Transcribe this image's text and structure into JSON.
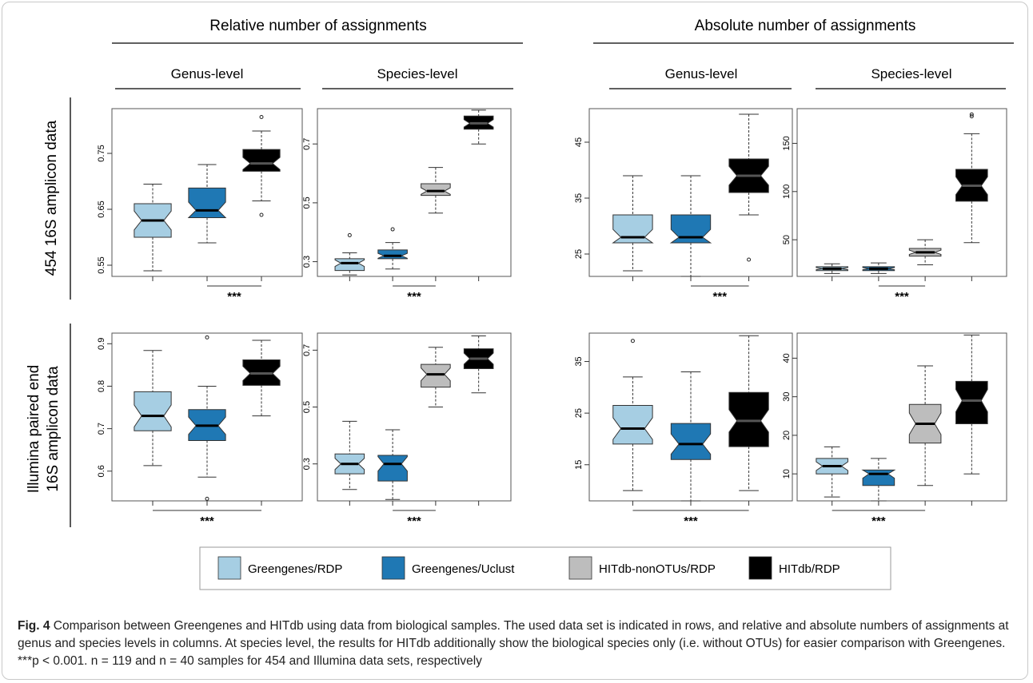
{
  "headers": {
    "relative": "Relative number of assignments",
    "absolute": "Absolute number of assignments",
    "genus": "Genus-level",
    "species": "Species-level",
    "row1": "454 16S amplicon data",
    "row2_line1": "Illumina paired end",
    "row2_line2": "16S amplicon data"
  },
  "significance_label": "***",
  "legend": [
    {
      "label": "Greengenes/RDP",
      "color": "#a6cee3"
    },
    {
      "label": "Greengenes/Uclust",
      "color": "#1f78b4"
    },
    {
      "label": "HITdb-nonOTUs/RDP",
      "color": "#bdbdbd"
    },
    {
      "label": "HITdb/RDP",
      "color": "#000000"
    }
  ],
  "caption": {
    "label": "Fig. 4",
    "text": "Comparison between Greengenes and HITdb using data from biological samples. The used data set is indicated in rows, and relative and absolute numbers of assignments at genus and species levels in columns. At species level, the results for HITdb additionally show the biological species only (i.e. without OTUs) for easier comparison with Greengenes. ***p < 0.001. n = 119 and n = 40 samples for 454 and Illumina data sets, respectively"
  },
  "chart_data": [
    {
      "type": "box",
      "id": "p454-rel-genus",
      "ylim": [
        0.53,
        0.83
      ],
      "yticks": [
        0.55,
        0.65,
        0.75
      ],
      "boxes": [
        {
          "series": "Greengenes/RDP",
          "min": 0.54,
          "q1": 0.6,
          "median": 0.63,
          "q3": 0.66,
          "max": 0.695,
          "outliers": []
        },
        {
          "series": "Greengenes/Uclust",
          "min": 0.59,
          "q1": 0.635,
          "median": 0.648,
          "q3": 0.688,
          "max": 0.73,
          "outliers": []
        },
        {
          "series": "HITdb/RDP",
          "min": 0.665,
          "q1": 0.718,
          "median": 0.732,
          "q3": 0.757,
          "max": 0.79,
          "outliers": [
            0.815,
            0.64
          ]
        }
      ],
      "sig_span": [
        2,
        3
      ]
    },
    {
      "type": "box",
      "id": "p454-rel-species",
      "ylim": [
        0.25,
        0.82
      ],
      "yticks": [
        0.3,
        0.5,
        0.7
      ],
      "boxes": [
        {
          "series": "Greengenes/RDP",
          "min": 0.255,
          "q1": 0.27,
          "median": 0.295,
          "q3": 0.31,
          "max": 0.33,
          "outliers": [
            0.39
          ]
        },
        {
          "series": "Greengenes/Uclust",
          "min": 0.275,
          "q1": 0.31,
          "median": 0.32,
          "q3": 0.34,
          "max": 0.365,
          "outliers": [
            0.41
          ]
        },
        {
          "series": "HITdb-nonOTUs/RDP",
          "min": 0.465,
          "q1": 0.525,
          "median": 0.54,
          "q3": 0.565,
          "max": 0.62,
          "outliers": []
        },
        {
          "series": "HITdb/RDP",
          "min": 0.7,
          "q1": 0.75,
          "median": 0.77,
          "q3": 0.795,
          "max": 0.815,
          "outliers": []
        }
      ],
      "sig_span": [
        2,
        3
      ]
    },
    {
      "type": "box",
      "id": "p454-abs-genus",
      "ylim": [
        21,
        51
      ],
      "yticks": [
        25,
        35,
        45
      ],
      "boxes": [
        {
          "series": "Greengenes/RDP",
          "min": 22,
          "q1": 27,
          "median": 28,
          "q3": 32,
          "max": 39,
          "outliers": []
        },
        {
          "series": "Greengenes/Uclust",
          "min": 21,
          "q1": 27,
          "median": 28,
          "q3": 32,
          "max": 39,
          "outliers": []
        },
        {
          "series": "HITdb/RDP",
          "min": 32,
          "q1": 36,
          "median": 39,
          "q3": 42,
          "max": 50,
          "outliers": [
            24
          ]
        }
      ],
      "sig_span": [
        2,
        3
      ]
    },
    {
      "type": "box",
      "id": "p454-abs-species",
      "ylim": [
        12,
        186
      ],
      "yticks": [
        50,
        100,
        150
      ],
      "boxes": [
        {
          "series": "Greengenes/RDP",
          "min": 15,
          "q1": 18,
          "median": 20,
          "q3": 22,
          "max": 25,
          "outliers": []
        },
        {
          "series": "Greengenes/Uclust",
          "min": 15,
          "q1": 18,
          "median": 20,
          "q3": 22,
          "max": 26,
          "outliers": []
        },
        {
          "series": "HITdb-nonOTUs/RDP",
          "min": 24,
          "q1": 33,
          "median": 37,
          "q3": 41,
          "max": 50,
          "outliers": []
        },
        {
          "series": "HITdb/RDP",
          "min": 47,
          "q1": 90,
          "median": 106,
          "q3": 123,
          "max": 160,
          "outliers": [
            178,
            180
          ]
        }
      ],
      "sig_span": [
        2,
        3
      ]
    },
    {
      "type": "box",
      "id": "ill-rel-genus",
      "ylim": [
        0.53,
        0.925
      ],
      "yticks": [
        0.6,
        0.7,
        0.8,
        0.9
      ],
      "boxes": [
        {
          "series": "Greengenes/RDP",
          "min": 0.613,
          "q1": 0.695,
          "median": 0.73,
          "q3": 0.787,
          "max": 0.884,
          "outliers": []
        },
        {
          "series": "Greengenes/Uclust",
          "min": 0.586,
          "q1": 0.672,
          "median": 0.707,
          "q3": 0.745,
          "max": 0.8,
          "outliers": [
            0.915,
            0.535
          ]
        },
        {
          "series": "HITdb/RDP",
          "min": 0.73,
          "q1": 0.802,
          "median": 0.83,
          "q3": 0.862,
          "max": 0.908,
          "outliers": []
        }
      ],
      "sig_span": [
        1,
        3
      ]
    },
    {
      "type": "box",
      "id": "ill-rel-species",
      "ylim": [
        0.17,
        0.76
      ],
      "yticks": [
        0.3,
        0.5,
        0.7
      ],
      "boxes": [
        {
          "series": "Greengenes/RDP",
          "min": 0.21,
          "q1": 0.265,
          "median": 0.3,
          "q3": 0.335,
          "max": 0.45,
          "outliers": []
        },
        {
          "series": "Greengenes/Uclust",
          "min": 0.175,
          "q1": 0.24,
          "median": 0.3,
          "q3": 0.33,
          "max": 0.42,
          "outliers": []
        },
        {
          "series": "HITdb-nonOTUs/RDP",
          "min": 0.5,
          "q1": 0.57,
          "median": 0.615,
          "q3": 0.65,
          "max": 0.71,
          "outliers": []
        },
        {
          "series": "HITdb/RDP",
          "min": 0.55,
          "q1": 0.635,
          "median": 0.67,
          "q3": 0.705,
          "max": 0.75,
          "outliers": []
        }
      ],
      "sig_span": [
        2,
        3
      ]
    },
    {
      "type": "box",
      "id": "ill-abs-genus",
      "ylim": [
        8,
        40.5
      ],
      "yticks": [
        15,
        25,
        35
      ],
      "boxes": [
        {
          "series": "Greengenes/RDP",
          "min": 10,
          "q1": 19,
          "median": 22,
          "q3": 26.5,
          "max": 32,
          "outliers": [
            39
          ]
        },
        {
          "series": "Greengenes/Uclust",
          "min": 8,
          "q1": 16,
          "median": 19,
          "q3": 23,
          "max": 33,
          "outliers": []
        },
        {
          "series": "HITdb/RDP",
          "min": 10,
          "q1": 18.5,
          "median": 23.5,
          "q3": 29,
          "max": 40,
          "outliers": []
        }
      ],
      "sig_span": [
        1,
        3
      ]
    },
    {
      "type": "box",
      "id": "ill-abs-species",
      "ylim": [
        3,
        46.5
      ],
      "yticks": [
        10,
        20,
        30,
        40
      ],
      "boxes": [
        {
          "series": "Greengenes/RDP",
          "min": 4,
          "q1": 10,
          "median": 12,
          "q3": 14,
          "max": 17,
          "outliers": []
        },
        {
          "series": "Greengenes/Uclust",
          "min": 3,
          "q1": 7,
          "median": 10,
          "q3": 11,
          "max": 14,
          "outliers": []
        },
        {
          "series": "HITdb-nonOTUs/RDP",
          "min": 7,
          "q1": 18,
          "median": 23,
          "q3": 28,
          "max": 38,
          "outliers": []
        },
        {
          "series": "HITdb/RDP",
          "min": 10,
          "q1": 23,
          "median": 29,
          "q3": 34,
          "max": 46,
          "outliers": []
        }
      ],
      "sig_span": [
        1,
        3
      ]
    }
  ]
}
